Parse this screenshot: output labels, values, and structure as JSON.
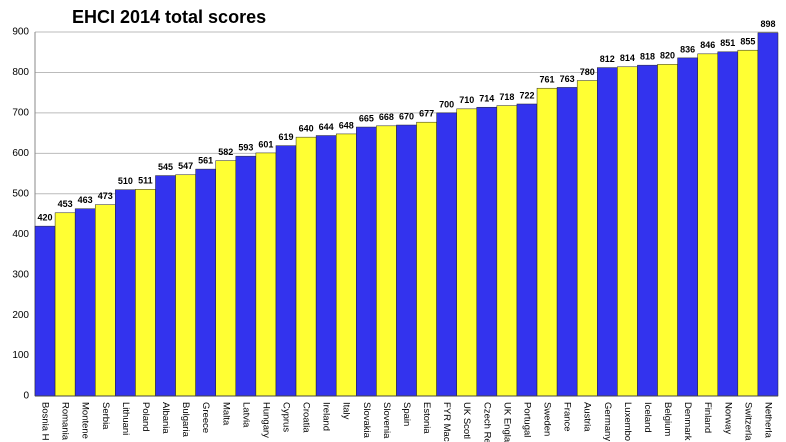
{
  "chart_data": {
    "type": "bar",
    "title": "EHCI 2014 total scores",
    "categories": [
      "Bosnia H",
      "Romania",
      "Montene",
      "Serbia",
      "Lithuani",
      "Poland",
      "Albania",
      "Bulgaria",
      "Greece",
      "Malta",
      "Latvia",
      "Hungary",
      "Cyprus",
      "Croatia",
      "Ireland",
      "Italy",
      "Slovakia",
      "Slovenia",
      "Spain",
      "Estonia",
      "FYR Mac",
      "UK Scotl",
      "Czech Re",
      "UK Engla",
      "Portugal",
      "Sweden",
      "France",
      "Austria",
      "Germany",
      "Luxembo",
      "Iceland",
      "Belgium",
      "Denmark",
      "Finland",
      "Norway",
      "Switzerla",
      "Netherla"
    ],
    "values": [
      420,
      453,
      463,
      473,
      510,
      511,
      545,
      547,
      561,
      582,
      593,
      601,
      619,
      640,
      644,
      648,
      665,
      668,
      670,
      677,
      700,
      710,
      714,
      718,
      722,
      761,
      763,
      780,
      812,
      814,
      818,
      820,
      836,
      846,
      851,
      855,
      898
    ],
    "colors": [
      "#3333ee",
      "#ffff33"
    ],
    "ylim": [
      0,
      900
    ],
    "yticks": [
      0,
      100,
      200,
      300,
      400,
      500,
      600,
      700,
      800,
      900
    ],
    "grid": true
  }
}
